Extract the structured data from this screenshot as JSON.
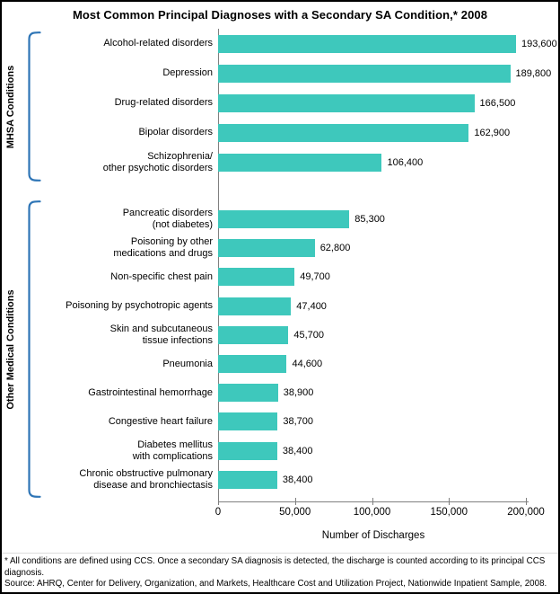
{
  "title": "Most Common Principal Diagnoses with a Secondary SA Condition,* 2008",
  "chart_data": {
    "type": "bar",
    "orientation": "horizontal",
    "title": "Most Common Principal Diagnoses with a Secondary SA Condition,* 2008",
    "xlabel": "Number of Discharges",
    "xlim": [
      0,
      200000
    ],
    "xtick_values": [
      0,
      50000,
      100000,
      150000,
      200000
    ],
    "xtick_labels": [
      "0",
      "50,000",
      "100,000",
      "150,000",
      "200,000"
    ],
    "grid": false,
    "legend": "none",
    "bar_color": "#3EC8BC",
    "axis_color": "#808080",
    "bracket_color": "#2E75B6",
    "groups": [
      {
        "label": "MHSA Conditions",
        "items": [
          {
            "category": "Alcohol-related disorders",
            "value": 193600,
            "value_label": "193,600"
          },
          {
            "category": "Depression",
            "value": 189800,
            "value_label": "189,800"
          },
          {
            "category": "Drug-related disorders",
            "value": 166500,
            "value_label": "166,500"
          },
          {
            "category": "Bipolar disorders",
            "value": 162900,
            "value_label": "162,900"
          },
          {
            "category": "Schizophrenia/\nother psychotic disorders",
            "value": 106400,
            "value_label": "106,400"
          }
        ]
      },
      {
        "label": "Other Medical Conditions",
        "items": [
          {
            "category": "Pancreatic disorders\n(not diabetes)",
            "value": 85300,
            "value_label": "85,300"
          },
          {
            "category": "Poisoning by other\nmedications and drugs",
            "value": 62800,
            "value_label": "62,800"
          },
          {
            "category": "Non-specific chest pain",
            "value": 49700,
            "value_label": "49,700"
          },
          {
            "category": "Poisoning by psychotropic agents",
            "value": 47400,
            "value_label": "47,400"
          },
          {
            "category": "Skin and subcutaneous\ntissue infections",
            "value": 45700,
            "value_label": "45,700"
          },
          {
            "category": "Pneumonia",
            "value": 44600,
            "value_label": "44,600"
          },
          {
            "category": "Gastrointestinal hemorrhage",
            "value": 38900,
            "value_label": "38,900"
          },
          {
            "category": "Congestive heart failure",
            "value": 38700,
            "value_label": "38,700"
          },
          {
            "category": "Diabetes mellitus\nwith complications",
            "value": 38400,
            "value_label": "38,400"
          },
          {
            "category": "Chronic obstructive pulmonary\ndisease and bronchiectasis",
            "value": 38400,
            "value_label": "38,400"
          }
        ]
      }
    ]
  },
  "footnotes": {
    "asterisk": "* All conditions are defined using CCS.  Once a secondary SA diagnosis is detected, the discharge is counted according to its principal CCS diagnosis.",
    "source": "Source: AHRQ, Center for Delivery, Organization, and Markets, Healthcare Cost and Utilization Project, Nationwide Inpatient Sample, 2008."
  }
}
